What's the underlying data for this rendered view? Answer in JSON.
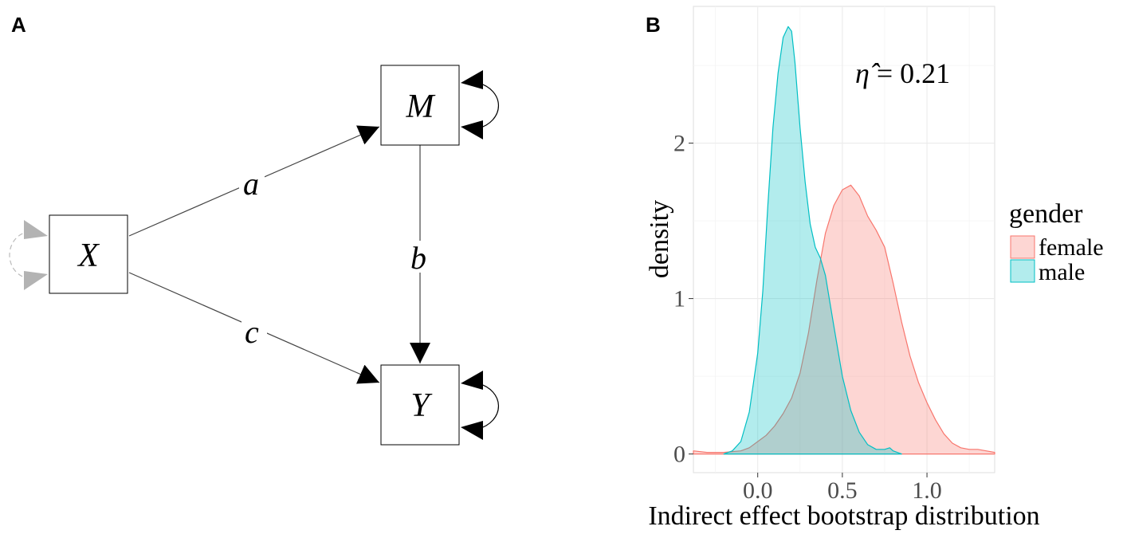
{
  "panel_a": {
    "label": "A",
    "nodes": {
      "x": "X",
      "m": "M",
      "y": "Y"
    },
    "paths": {
      "a": "a",
      "b": "b",
      "c": "c"
    }
  },
  "panel_b": {
    "label": "B"
  },
  "chart_data": {
    "type": "area",
    "xlabel": "Indirect effect bootstrap distribution",
    "ylabel": "density",
    "xlim": [
      -0.38,
      1.4
    ],
    "ylim": [
      -0.12,
      2.88
    ],
    "x_ticks": [
      0.0,
      0.5,
      1.0
    ],
    "x_tick_labels": [
      "0.0",
      "0.5",
      "1.0"
    ],
    "y_ticks": [
      0,
      1,
      2
    ],
    "y_tick_labels": [
      "0",
      "1",
      "2"
    ],
    "grid": true,
    "legend_title": "gender",
    "legend_position": "right",
    "annotation": {
      "symbol": "η̂",
      "equals": " = ",
      "value": "0.21"
    },
    "series": [
      {
        "name": "female",
        "fill": "#F8766D",
        "x": [
          -0.38,
          -0.3,
          -0.2,
          -0.1,
          -0.05,
          0.0,
          0.05,
          0.1,
          0.15,
          0.2,
          0.25,
          0.3,
          0.35,
          0.4,
          0.45,
          0.5,
          0.55,
          0.6,
          0.65,
          0.7,
          0.75,
          0.8,
          0.85,
          0.9,
          0.95,
          1.0,
          1.05,
          1.1,
          1.15,
          1.2,
          1.25,
          1.3,
          1.35,
          1.4
        ],
        "y": [
          0.02,
          0.01,
          0.01,
          0.02,
          0.04,
          0.08,
          0.12,
          0.18,
          0.26,
          0.36,
          0.52,
          0.78,
          1.12,
          1.42,
          1.6,
          1.7,
          1.73,
          1.66,
          1.53,
          1.44,
          1.33,
          1.1,
          0.85,
          0.63,
          0.46,
          0.33,
          0.22,
          0.13,
          0.07,
          0.04,
          0.03,
          0.03,
          0.02,
          0.01
        ]
      },
      {
        "name": "male",
        "fill": "#00BFC4",
        "x": [
          -0.2,
          -0.15,
          -0.1,
          -0.05,
          0.0,
          0.03,
          0.06,
          0.09,
          0.12,
          0.15,
          0.18,
          0.2,
          0.22,
          0.25,
          0.28,
          0.31,
          0.34,
          0.37,
          0.4,
          0.45,
          0.5,
          0.55,
          0.6,
          0.65,
          0.7,
          0.75,
          0.78,
          0.8,
          0.85
        ],
        "y": [
          0.0,
          0.02,
          0.08,
          0.27,
          0.65,
          1.05,
          1.6,
          2.1,
          2.45,
          2.68,
          2.75,
          2.72,
          2.52,
          2.1,
          1.75,
          1.48,
          1.33,
          1.26,
          1.15,
          0.82,
          0.5,
          0.28,
          0.14,
          0.06,
          0.03,
          0.03,
          0.04,
          0.02,
          0.0
        ]
      }
    ]
  }
}
